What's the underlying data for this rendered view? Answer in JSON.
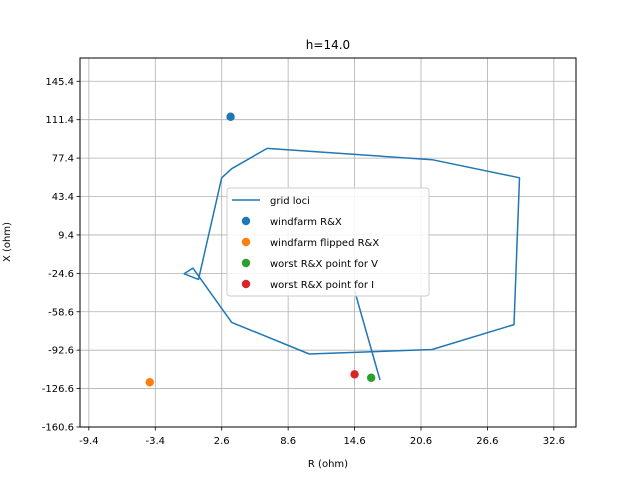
{
  "chart_data": {
    "type": "scatter",
    "title": "h=14.0",
    "xlabel": "R (ohm)",
    "ylabel": "X (ohm)",
    "xlim": [
      -10.2,
      34.6
    ],
    "ylim": [
      -160.6,
      166.0
    ],
    "xticks": [
      "-9.4",
      "-3.4",
      "2.6",
      "8.6",
      "14.6",
      "20.6",
      "26.6",
      "32.6"
    ],
    "yticks": [
      "-160.6",
      "-126.6",
      "-92.6",
      "-58.6",
      "-24.6",
      "9.4",
      "43.4",
      "77.4",
      "111.4",
      "145.4"
    ],
    "grid": true,
    "legend_position": "center",
    "series": [
      {
        "name": "grid loci",
        "type": "line",
        "color": "#1f77b4",
        "points": [
          [
            6.7,
            86.0
          ],
          [
            21.6,
            76.0
          ],
          [
            29.5,
            60.0
          ],
          [
            29.0,
            -70.0
          ],
          [
            21.6,
            -92.0
          ],
          [
            10.5,
            -96.0
          ],
          [
            3.5,
            -68.0
          ],
          [
            0.0,
            -20.0
          ],
          [
            -0.8,
            -25.0
          ],
          [
            0.5,
            -30.0
          ],
          [
            2.6,
            60.0
          ],
          [
            3.5,
            68.0
          ],
          [
            6.7,
            86.0
          ]
        ]
      },
      {
        "name": "grid loci",
        "type": "line",
        "color": "#1f77b4",
        "points": [
          [
            14.6,
            -40.0
          ],
          [
            16.9,
            -119.0
          ]
        ]
      },
      {
        "name": "windfarm R&X",
        "type": "scatter",
        "color": "#1f77b4",
        "points": [
          [
            3.4,
            114.0
          ]
        ]
      },
      {
        "name": "windfarm flipped R&X",
        "type": "scatter",
        "color": "#ff7f0e",
        "points": [
          [
            -3.9,
            -121.0
          ]
        ]
      },
      {
        "name": "worst R&X point for V",
        "type": "scatter",
        "color": "#2ca02c",
        "points": [
          [
            16.1,
            -117.0
          ]
        ]
      },
      {
        "name": "worst R&X point for I",
        "type": "scatter",
        "color": "#d62728",
        "points": [
          [
            14.6,
            -114.0
          ]
        ]
      }
    ],
    "legend": [
      {
        "label": "grid loci",
        "marker": "line",
        "color": "#1f77b4"
      },
      {
        "label": "windfarm R&X",
        "marker": "dot",
        "color": "#1f77b4"
      },
      {
        "label": "windfarm flipped R&X",
        "marker": "dot",
        "color": "#ff7f0e"
      },
      {
        "label": "worst R&X point for V",
        "marker": "dot",
        "color": "#2ca02c"
      },
      {
        "label": "worst R&X point for I",
        "marker": "dot",
        "color": "#d62728"
      }
    ]
  }
}
